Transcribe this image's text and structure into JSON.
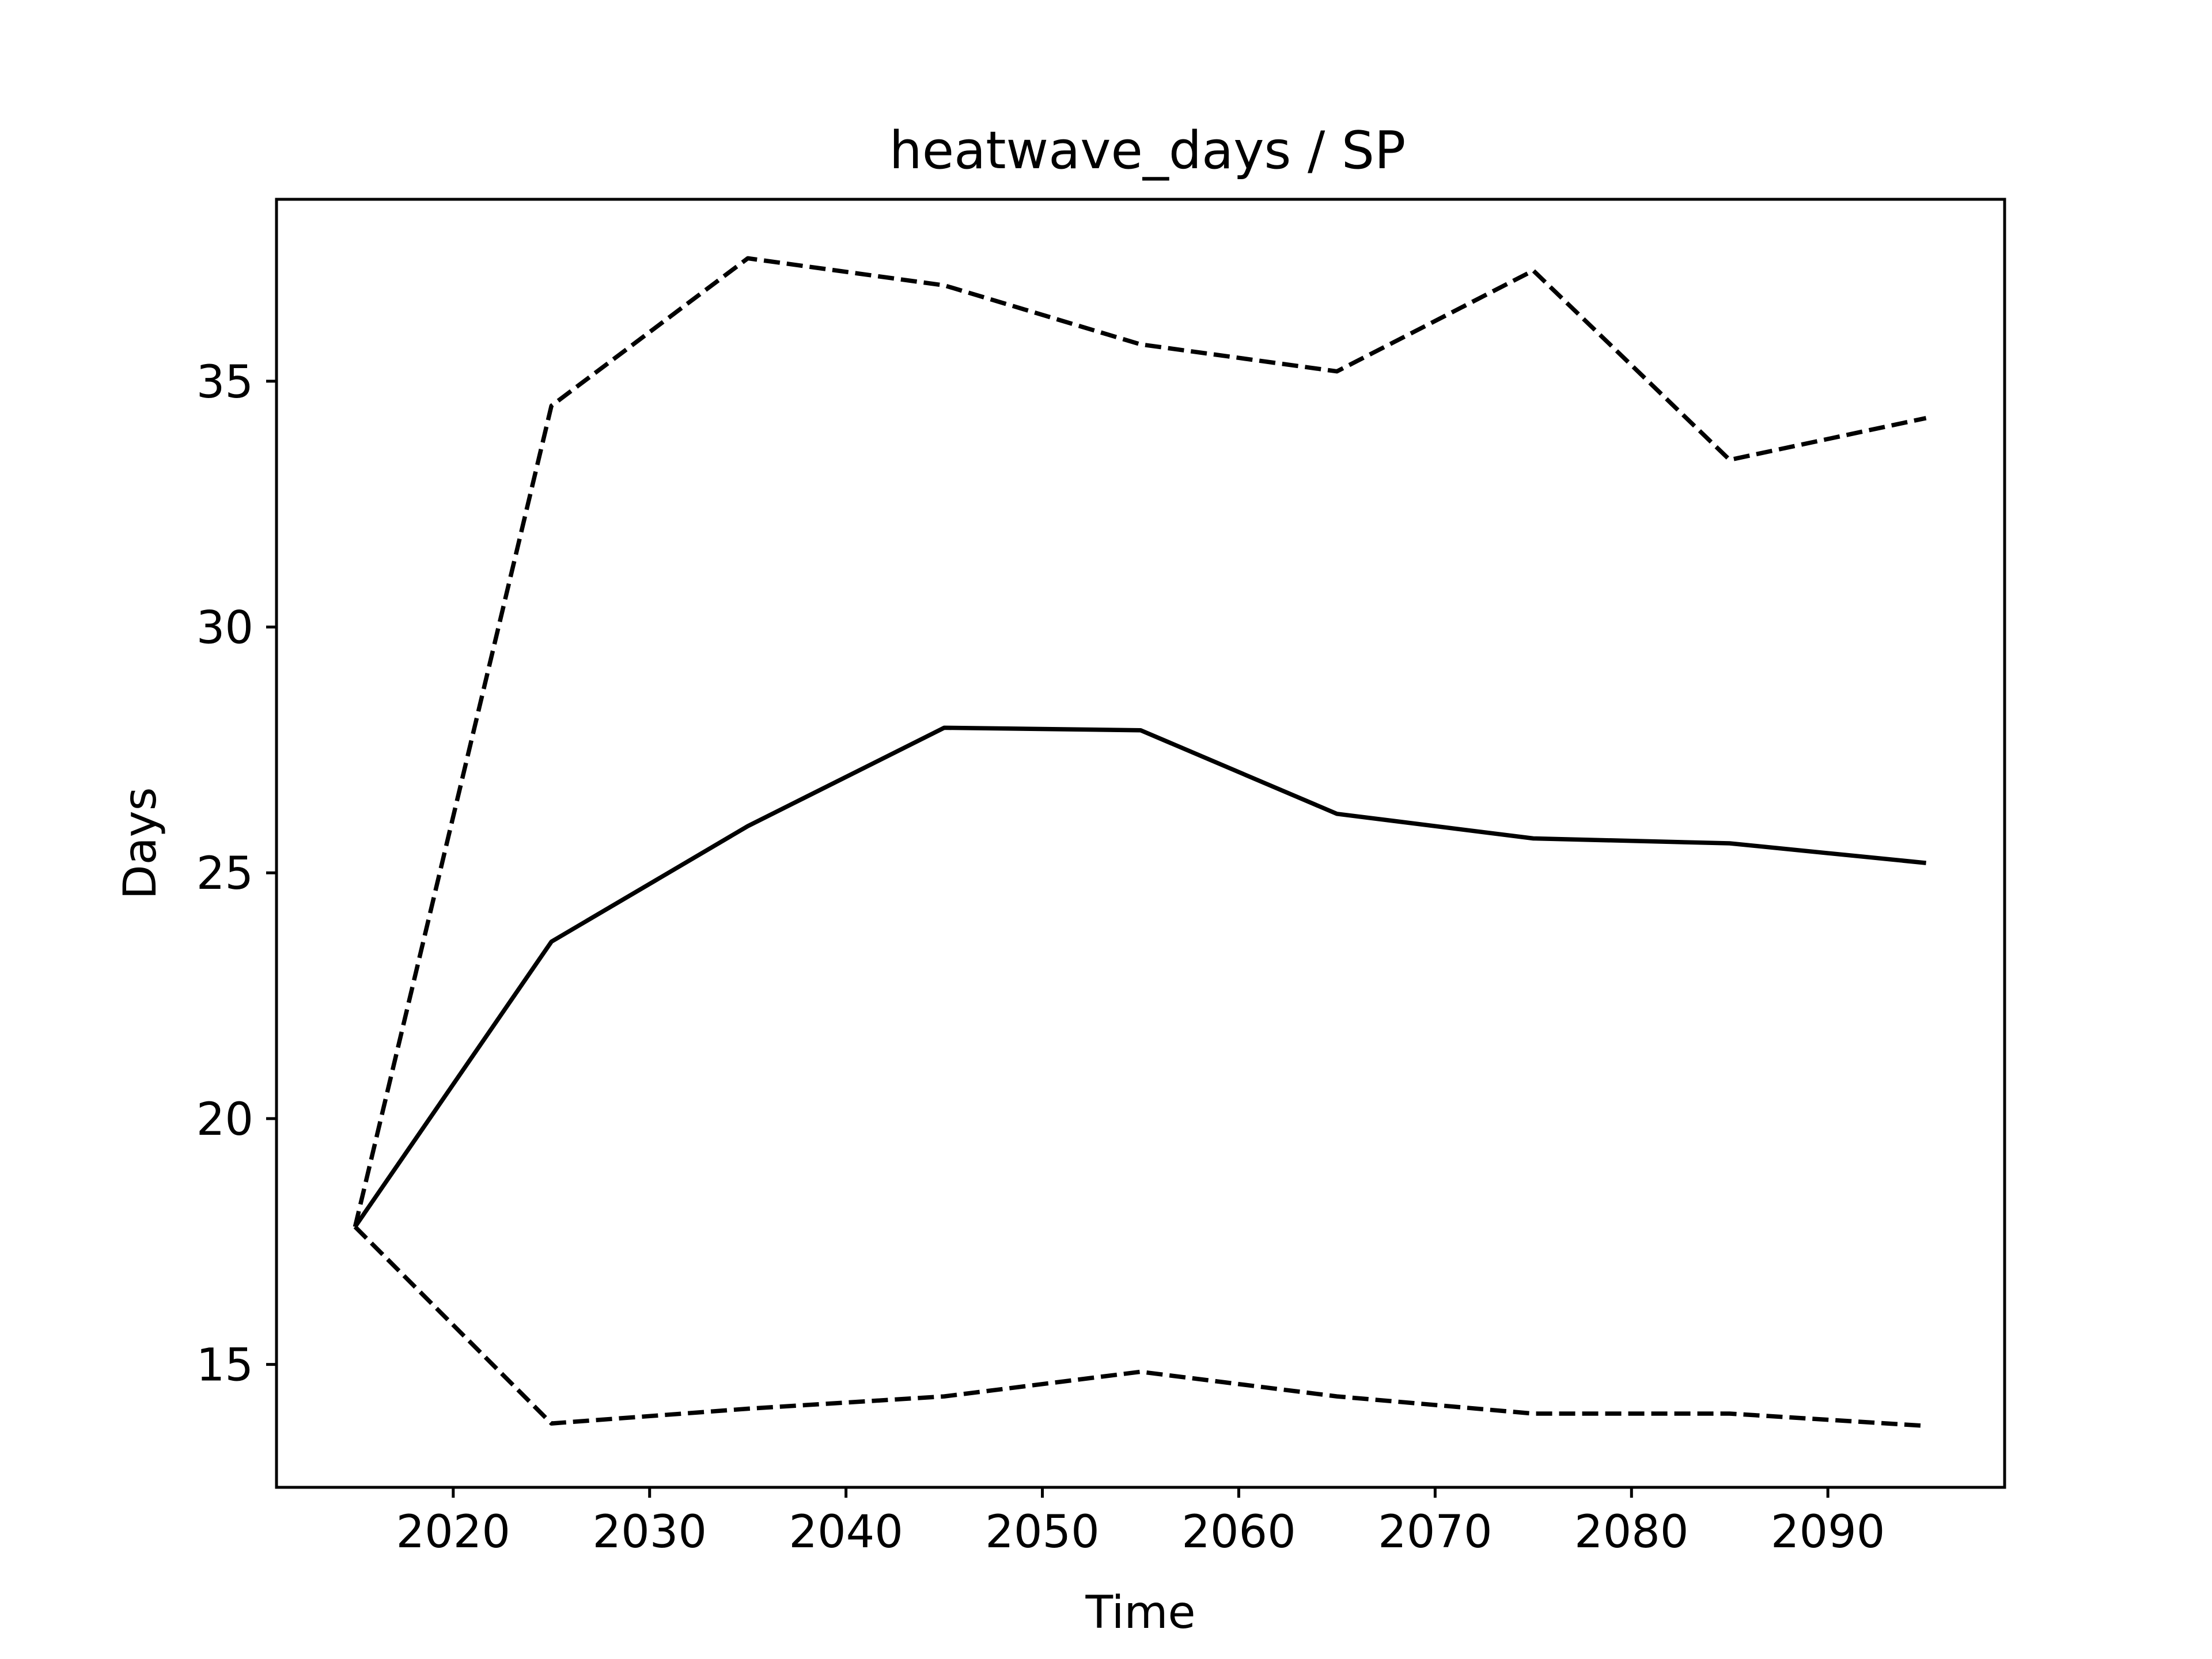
{
  "chart_data": {
    "type": "line",
    "title": "heatwave_days / SP",
    "xlabel": "Time",
    "ylabel": "Days",
    "xlim": [
      2011,
      2099
    ],
    "ylim": [
      12.5,
      38.7
    ],
    "xticks": [
      2020,
      2030,
      2040,
      2050,
      2060,
      2070,
      2080,
      2090
    ],
    "yticks": [
      15,
      20,
      25,
      30,
      35
    ],
    "grid": false,
    "legend": "none",
    "x": [
      2015,
      2025,
      2035,
      2045,
      2055,
      2065,
      2075,
      2085,
      2095
    ],
    "series": [
      {
        "style": "solid",
        "color": "#000000",
        "values": [
          17.8,
          23.6,
          25.95,
          27.95,
          27.9,
          26.2,
          25.7,
          25.6,
          25.2
        ]
      },
      {
        "style": "dashed",
        "color": "#000000",
        "values": [
          17.8,
          34.5,
          37.5,
          36.95,
          35.75,
          35.2,
          37.25,
          33.4,
          34.25
        ]
      },
      {
        "style": "dashed",
        "color": "#000000",
        "values": [
          17.8,
          13.8,
          14.1,
          14.35,
          14.85,
          14.35,
          14.0,
          14.0,
          13.75
        ]
      }
    ]
  }
}
